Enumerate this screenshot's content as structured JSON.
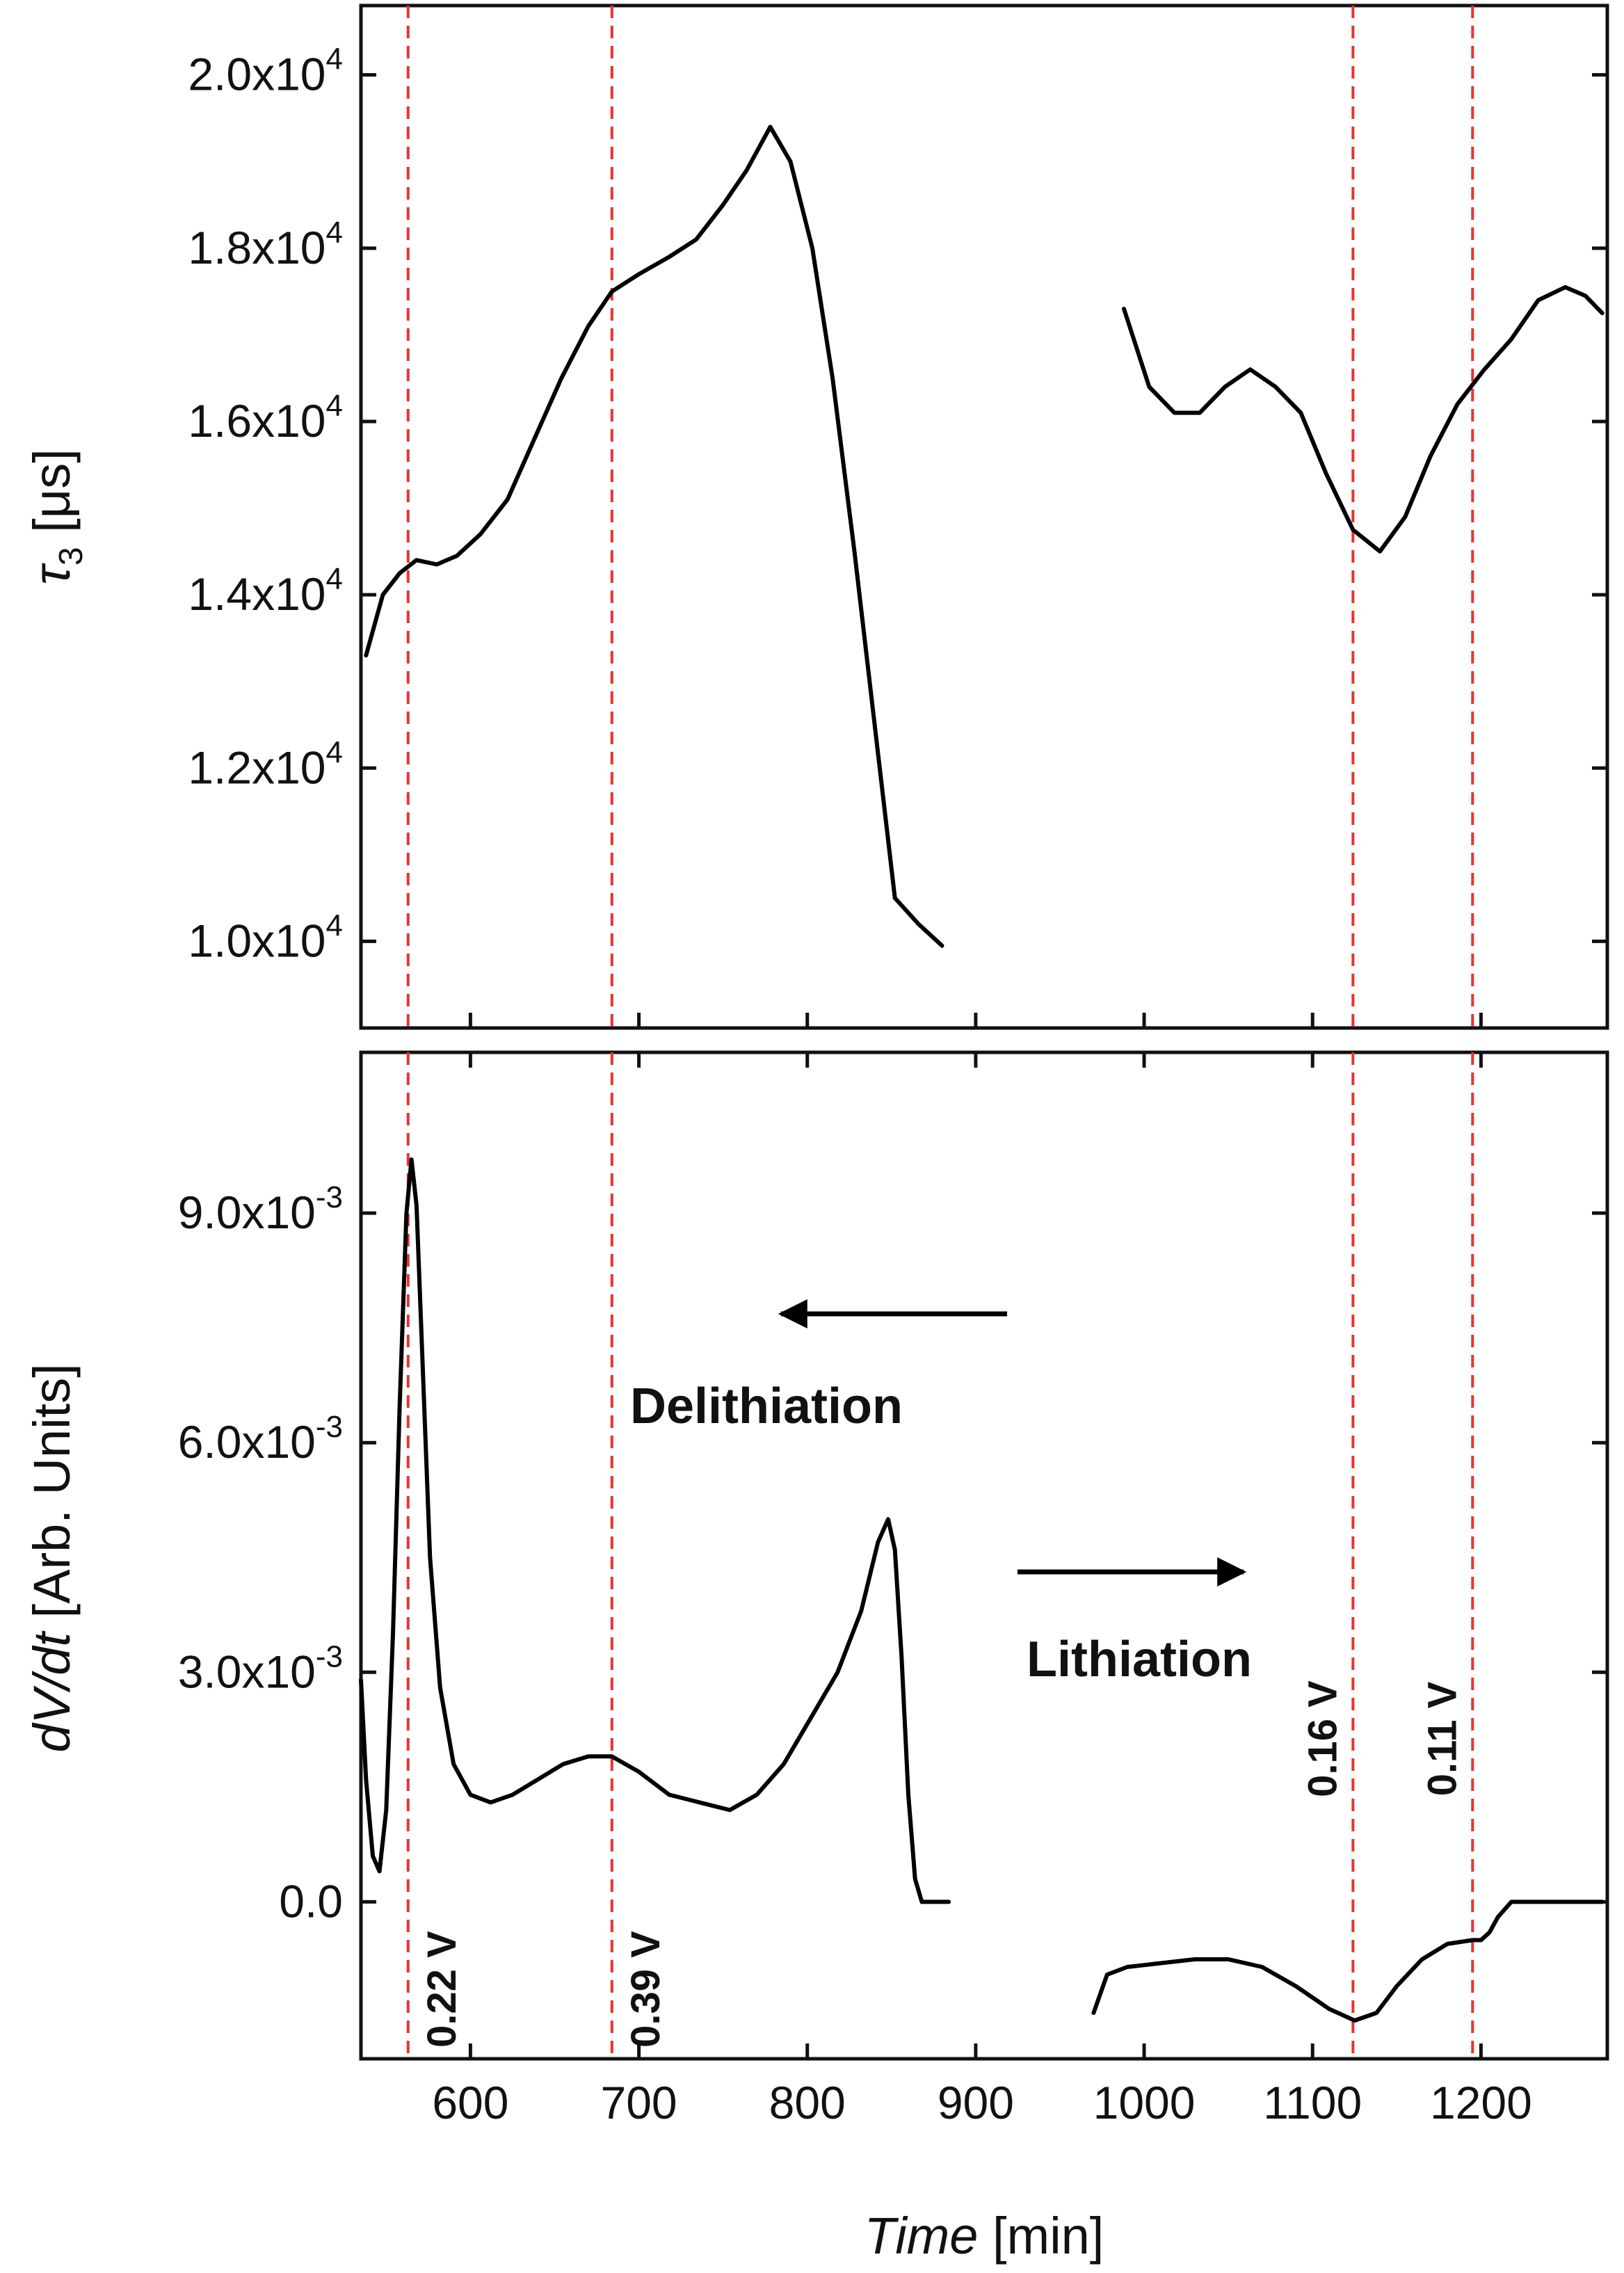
{
  "chart_data": [
    {
      "type": "line",
      "panel": "top",
      "ylabel": "τ3 [μs]",
      "ylabel_symbol": "τ",
      "ylabel_subscript": "3",
      "ylabel_unit": "[μs]",
      "ylim": [
        9000,
        20800
      ],
      "yticks": [
        {
          "value": 10000,
          "mantissa": "1.0x10",
          "exponent": "4"
        },
        {
          "value": 12000,
          "mantissa": "1.2x10",
          "exponent": "4"
        },
        {
          "value": 14000,
          "mantissa": "1.4x10",
          "exponent": "4"
        },
        {
          "value": 16000,
          "mantissa": "1.6x10",
          "exponent": "4"
        },
        {
          "value": 18000,
          "mantissa": "1.8x10",
          "exponent": "4"
        },
        {
          "value": 20000,
          "mantissa": "2.0x10",
          "exponent": "4"
        }
      ],
      "series": [
        {
          "name": "tau3-delithiation",
          "x": [
            538,
            548,
            558,
            568,
            580,
            592,
            606,
            622,
            638,
            654,
            670,
            684,
            700,
            718,
            734,
            750,
            764,
            778,
            790,
            803,
            815,
            828,
            840,
            852,
            866,
            880
          ],
          "y": [
            13300,
            14000,
            14250,
            14400,
            14350,
            14450,
            14700,
            15100,
            15800,
            16500,
            17100,
            17500,
            17700,
            17900,
            18100,
            18500,
            18900,
            19400,
            19000,
            18000,
            16500,
            14500,
            12500,
            10500,
            10200,
            9950
          ]
        },
        {
          "name": "tau3-lithiation",
          "x": [
            988,
            1003,
            1018,
            1033,
            1048,
            1063,
            1078,
            1093,
            1108,
            1124,
            1140,
            1155,
            1170,
            1186,
            1202,
            1218,
            1234,
            1250,
            1262,
            1272
          ],
          "y": [
            17300,
            16400,
            16100,
            16100,
            16400,
            16600,
            16400,
            16100,
            15400,
            14750,
            14500,
            14900,
            15600,
            16200,
            16600,
            16950,
            17400,
            17550,
            17450,
            17250
          ]
        }
      ]
    },
    {
      "type": "line",
      "panel": "bottom",
      "ylabel": "dV/dt [Arb. Units]",
      "ylabel_italic": "dV/dt",
      "ylabel_unit": "[Arb. Units]",
      "xlabel": "Time [min]",
      "xlabel_italic": "Time",
      "xlabel_unit": "[min]",
      "xlim": [
        535,
        1275
      ],
      "ylim": [
        -0.00205,
        0.0111
      ],
      "xticks": [
        600,
        700,
        800,
        900,
        1000,
        1100,
        1200
      ],
      "yticks": [
        {
          "value": 0,
          "label": "0.0"
        },
        {
          "value": 0.003,
          "mantissa": "3.0x10",
          "exponent": "-3"
        },
        {
          "value": 0.006,
          "mantissa": "6.0x10",
          "exponent": "-3"
        },
        {
          "value": 0.009,
          "mantissa": "9.0x10",
          "exponent": "-3"
        }
      ],
      "series": [
        {
          "name": "dVdt-delithiation",
          "x": [
            535,
            538,
            542,
            546,
            550,
            554,
            558,
            562,
            565,
            568,
            572,
            576,
            582,
            590,
            600,
            612,
            625,
            640,
            655,
            670,
            684,
            700,
            718,
            736,
            754,
            770,
            786,
            802,
            818,
            832,
            842,
            848,
            852,
            856,
            860,
            864,
            868,
            884
          ],
          "y": [
            0.0029,
            0.0016,
            0.0006,
            0.0004,
            0.0012,
            0.0035,
            0.0065,
            0.009,
            0.0097,
            0.0091,
            0.0068,
            0.0045,
            0.0028,
            0.0018,
            0.0014,
            0.0013,
            0.0014,
            0.0016,
            0.0018,
            0.0019,
            0.0019,
            0.0017,
            0.0014,
            0.0013,
            0.0012,
            0.0014,
            0.0018,
            0.0024,
            0.003,
            0.0038,
            0.0047,
            0.005,
            0.0046,
            0.0032,
            0.0014,
            0.0003,
            0,
            0
          ]
        },
        {
          "name": "dVdt-lithiation",
          "x": [
            970,
            978,
            990,
            1010,
            1030,
            1050,
            1070,
            1090,
            1110,
            1125,
            1138,
            1150,
            1165,
            1180,
            1195,
            1200,
            1205,
            1210,
            1218,
            1272
          ],
          "y": [
            -0.00145,
            -0.00095,
            -0.00085,
            -0.0008,
            -0.00075,
            -0.00075,
            -0.00085,
            -0.0011,
            -0.0014,
            -0.00155,
            -0.00145,
            -0.0011,
            -0.00075,
            -0.00055,
            -0.0005,
            -0.0005,
            -0.0004,
            -0.0002,
            0,
            0
          ]
        }
      ]
    }
  ],
  "markers": [
    {
      "x": 563,
      "label": "0.22 V"
    },
    {
      "x": 684,
      "label": "0.39 V"
    },
    {
      "x": 1124,
      "label": "0.16 V"
    },
    {
      "x": 1195,
      "label": "0.11 V"
    }
  ],
  "annotations": {
    "delithiation": "Delithiation",
    "lithiation": "Lithiation"
  },
  "colors": {
    "line": "#000000",
    "marker": "#e8342e",
    "axis": "#111111"
  }
}
